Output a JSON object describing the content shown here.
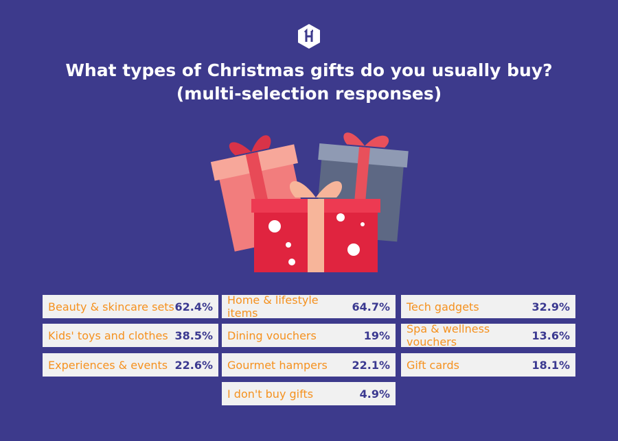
{
  "logo": {
    "icon": "hexagon-h-logo",
    "text": "H"
  },
  "title_line1": "What types of Christmas gifts do you usually buy?",
  "title_line2": "(multi-selection responses)",
  "colors": {
    "background": "#3d3a8c",
    "label": "#f5911e",
    "value": "#3b3990",
    "cell": "#f1f1f1"
  },
  "chart_data": {
    "type": "table",
    "title": "What types of Christmas gifts do you usually buy? (multi-selection responses)",
    "unit": "%",
    "rows": [
      {
        "label": "Beauty & skincare sets",
        "value": 62.4,
        "display": "62.4%"
      },
      {
        "label": "Home & lifestyle items",
        "value": 64.7,
        "display": "64.7%"
      },
      {
        "label": "Tech gadgets",
        "value": 32.9,
        "display": "32.9%"
      },
      {
        "label": "Kids' toys and clothes",
        "value": 38.5,
        "display": "38.5%"
      },
      {
        "label": "Dining vouchers",
        "value": 19,
        "display": "19%"
      },
      {
        "label": "Spa & wellness vouchers",
        "value": 13.6,
        "display": "13.6%"
      },
      {
        "label": "Experiences & events",
        "value": 22.6,
        "display": "22.6%"
      },
      {
        "label": "Gourmet hampers",
        "value": 22.1,
        "display": "22.1%"
      },
      {
        "label": "Gift cards",
        "value": 18.1,
        "display": "18.1%"
      },
      {
        "label": "I don't buy gifts",
        "value": 4.9,
        "display": "4.9%"
      }
    ]
  }
}
